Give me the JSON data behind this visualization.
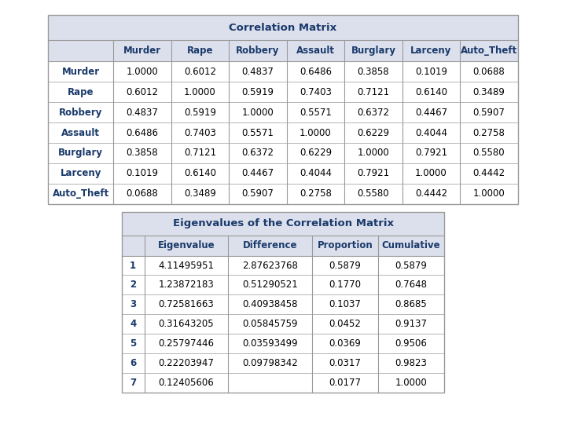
{
  "corr_title": "Correlation Matrix",
  "corr_col_headers": [
    "",
    "Murder",
    "Rape",
    "Robbery",
    "Assault",
    "Burglary",
    "Larceny",
    "Auto_Theft"
  ],
  "corr_rows": [
    [
      "Murder",
      "1.0000",
      "0.6012",
      "0.4837",
      "0.6486",
      "0.3858",
      "0.1019",
      "0.0688"
    ],
    [
      "Rape",
      "0.6012",
      "1.0000",
      "0.5919",
      "0.7403",
      "0.7121",
      "0.6140",
      "0.3489"
    ],
    [
      "Robbery",
      "0.4837",
      "0.5919",
      "1.0000",
      "0.5571",
      "0.6372",
      "0.4467",
      "0.5907"
    ],
    [
      "Assault",
      "0.6486",
      "0.7403",
      "0.5571",
      "1.0000",
      "0.6229",
      "0.4044",
      "0.2758"
    ],
    [
      "Burglary",
      "0.3858",
      "0.7121",
      "0.6372",
      "0.6229",
      "1.0000",
      "0.7921",
      "0.5580"
    ],
    [
      "Larceny",
      "0.1019",
      "0.6140",
      "0.4467",
      "0.4044",
      "0.7921",
      "1.0000",
      "0.4442"
    ],
    [
      "Auto_Theft",
      "0.0688",
      "0.3489",
      "0.5907",
      "0.2758",
      "0.5580",
      "0.4442",
      "1.0000"
    ]
  ],
  "eigen_title": "Eigenvalues of the Correlation Matrix",
  "eigen_col_headers": [
    "",
    "Eigenvalue",
    "Difference",
    "Proportion",
    "Cumulative"
  ],
  "eigen_rows": [
    [
      "1",
      "4.11495951",
      "2.87623768",
      "0.5879",
      "0.5879"
    ],
    [
      "2",
      "1.23872183",
      "0.51290521",
      "0.1770",
      "0.7648"
    ],
    [
      "3",
      "0.72581663",
      "0.40938458",
      "0.1037",
      "0.8685"
    ],
    [
      "4",
      "0.31643205",
      "0.05845759",
      "0.0452",
      "0.9137"
    ],
    [
      "5",
      "0.25797446",
      "0.03593499",
      "0.0369",
      "0.9506"
    ],
    [
      "6",
      "0.22203947",
      "0.09798342",
      "0.0317",
      "0.9823"
    ],
    [
      "7",
      "0.12405606",
      "",
      "0.0177",
      "1.0000"
    ]
  ],
  "header_text_color": "#1a3a6b",
  "row_label_color": "#1a3a6b",
  "data_text_color": "#000000",
  "title_bg": "#dce0ec",
  "header_bg": "#dce0ec",
  "data_bg": "#ffffff",
  "border_color": "#999999",
  "font_size": 8.5,
  "title_font_size": 9.5
}
